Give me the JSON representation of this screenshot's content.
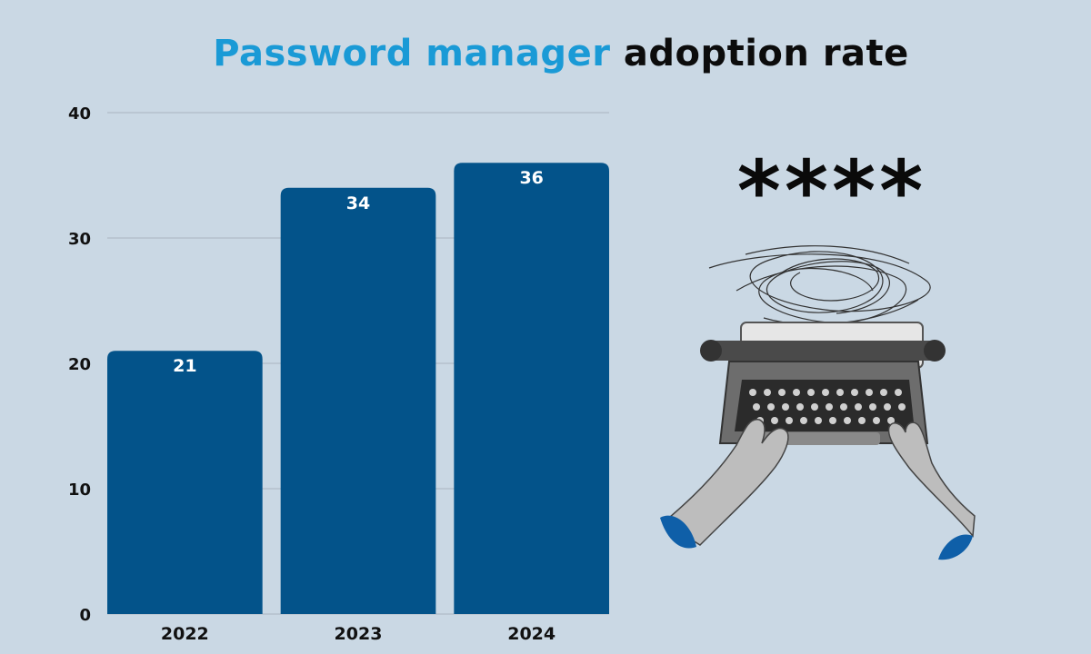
{
  "title": {
    "highlight": "Password manager",
    "rest": "adoption rate"
  },
  "chart_data": {
    "type": "bar",
    "categories": [
      "2022",
      "2023",
      "2024"
    ],
    "values": [
      21,
      34,
      36
    ],
    "ylim": [
      0,
      40
    ],
    "yticks": [
      0,
      10,
      20,
      30,
      40
    ],
    "grid": true,
    "bar_color": "#03538a",
    "value_labels": true
  },
  "illustration": {
    "masked_text": "****",
    "icons": [
      "typewriter-icon",
      "hands-icon",
      "scribble-icon"
    ]
  }
}
